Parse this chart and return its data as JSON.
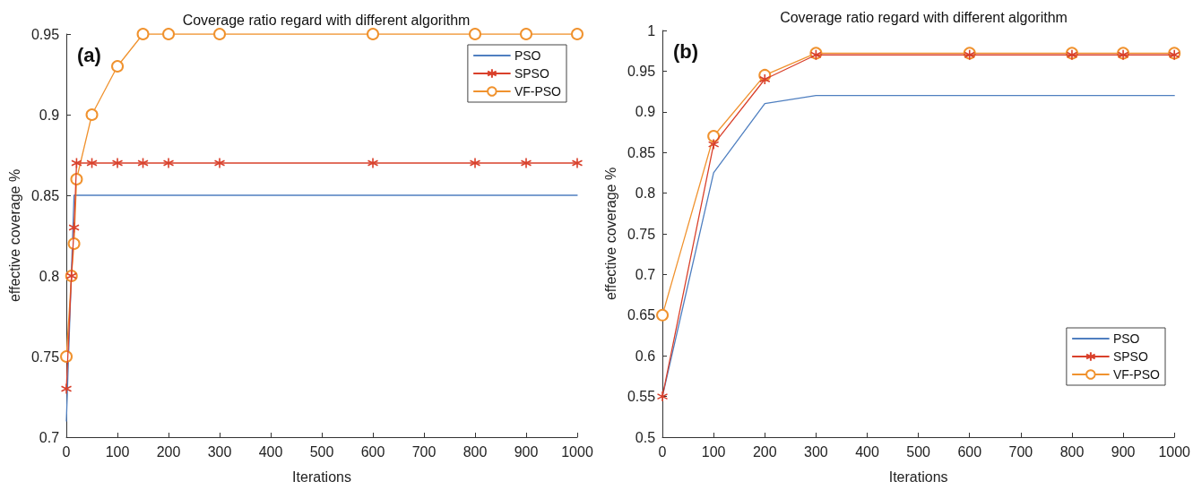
{
  "chart_data": [
    {
      "type": "line",
      "title": "Coverage ratio regard with different algorithm",
      "xlabel": "Iterations",
      "ylabel": "effective coverage %",
      "annotations": [
        "(a)"
      ],
      "xlim": [
        0,
        1000
      ],
      "xticks": [
        0,
        100,
        200,
        300,
        400,
        500,
        600,
        700,
        800,
        900,
        1000
      ],
      "ylim": [
        0.7,
        0.95
      ],
      "yticks": [
        0.7,
        0.75,
        0.8,
        0.85,
        0.9,
        0.95
      ],
      "grid": false,
      "legend": "top right",
      "line_style": "solid",
      "series": [
        {
          "name": "PSO",
          "color": "#4f7fc0",
          "marker": "none",
          "x": [
            0,
            15,
            1000
          ],
          "values": [
            0.71,
            0.85,
            0.85
          ]
        },
        {
          "name": "SPSO",
          "color": "#d9402b",
          "marker": "cross",
          "x": [
            0,
            10,
            15,
            20,
            50,
            100,
            150,
            200,
            300,
            600,
            800,
            900,
            1000
          ],
          "values": [
            0.73,
            0.8,
            0.83,
            0.87,
            0.87,
            0.87,
            0.87,
            0.87,
            0.87,
            0.87,
            0.87,
            0.87,
            0.87
          ]
        },
        {
          "name": "VF-PSO",
          "color": "#f0922e",
          "marker": "circle",
          "x": [
            0,
            10,
            15,
            20,
            50,
            100,
            150,
            200,
            300,
            600,
            800,
            900,
            1000
          ],
          "values": [
            0.75,
            0.8,
            0.82,
            0.86,
            0.9,
            0.93,
            0.95,
            0.95,
            0.95,
            0.95,
            0.95,
            0.95,
            0.95
          ]
        }
      ]
    },
    {
      "type": "line",
      "title": "Coverage ratio regard with different algorithm",
      "xlabel": "Iterations",
      "ylabel": "effective coverage %",
      "annotations": [
        "(b)"
      ],
      "xlim": [
        0,
        1000
      ],
      "xticks": [
        0,
        100,
        200,
        300,
        400,
        500,
        600,
        700,
        800,
        900,
        1000
      ],
      "ylim": [
        0.5,
        1
      ],
      "yticks": [
        0.5,
        0.55,
        0.6,
        0.65,
        0.7,
        0.75,
        0.8,
        0.85,
        0.9,
        0.95,
        1
      ],
      "grid": false,
      "legend": "bottom right",
      "line_style": "solid",
      "series": [
        {
          "name": "PSO",
          "color": "#4f7fc0",
          "marker": "none",
          "x": [
            0,
            100,
            200,
            300,
            1000
          ],
          "values": [
            0.55,
            0.825,
            0.91,
            0.92,
            0.92
          ]
        },
        {
          "name": "SPSO",
          "color": "#d9402b",
          "marker": "cross",
          "x": [
            0,
            100,
            200,
            300,
            600,
            800,
            900,
            1000
          ],
          "values": [
            0.55,
            0.86,
            0.94,
            0.97,
            0.97,
            0.97,
            0.97,
            0.97
          ]
        },
        {
          "name": "VF-PSO",
          "color": "#f0922e",
          "marker": "circle",
          "x": [
            0,
            100,
            200,
            300,
            600,
            800,
            900,
            1000
          ],
          "values": [
            0.65,
            0.87,
            0.945,
            0.972,
            0.972,
            0.972,
            0.972,
            0.972
          ]
        }
      ]
    }
  ]
}
